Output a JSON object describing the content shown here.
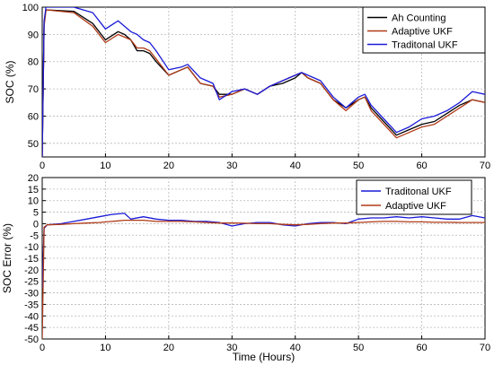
{
  "chart_data": [
    {
      "type": "line",
      "title": "",
      "xlabel": "",
      "ylabel": "SOC (%)",
      "xlim": [
        0,
        70
      ],
      "ylim": [
        45,
        100
      ],
      "xticks": [
        0,
        10,
        20,
        30,
        40,
        50,
        60,
        70
      ],
      "yticks": [
        50,
        60,
        70,
        80,
        90,
        100
      ],
      "grid": true,
      "legend": "top-right",
      "colors": [
        "#000000",
        "#b03a17",
        "#1a1ad8"
      ],
      "series": [
        {
          "name": "Ah Counting",
          "color": "#000000",
          "x": [
            0,
            0.3,
            0.6,
            5,
            8,
            10,
            12,
            13,
            14,
            15,
            16,
            17,
            18,
            20,
            22,
            23,
            25,
            27,
            28,
            30,
            32,
            34,
            36,
            38,
            40,
            41,
            42,
            44,
            46,
            48,
            50,
            51,
            52,
            54,
            56,
            58,
            60,
            62,
            64,
            66,
            68,
            70
          ],
          "y": [
            45,
            94,
            99,
            98.5,
            94,
            88,
            91,
            90,
            88,
            84,
            84,
            83,
            80,
            75,
            77,
            78,
            72,
            71,
            68,
            68,
            70,
            68,
            71,
            72,
            74,
            76,
            74,
            72,
            66,
            63,
            66,
            67,
            63,
            58,
            53,
            55,
            57,
            58,
            61,
            64,
            66,
            65
          ]
        },
        {
          "name": "Adaptive UKF",
          "color": "#b03a17",
          "x": [
            0,
            0.3,
            0.6,
            5,
            8,
            10,
            12,
            13,
            14,
            15,
            16,
            17,
            18,
            20,
            22,
            23,
            25,
            27,
            28,
            30,
            32,
            34,
            36,
            38,
            40,
            41,
            42,
            44,
            46,
            48,
            50,
            51,
            52,
            54,
            56,
            58,
            60,
            62,
            64,
            66,
            68,
            70
          ],
          "y": [
            45,
            93,
            99,
            98,
            93,
            87,
            90,
            89,
            88,
            85,
            85,
            84,
            81,
            75,
            77,
            78,
            72,
            71,
            67,
            68,
            70,
            68,
            71,
            73,
            75,
            76,
            74,
            72,
            66,
            62,
            66,
            67,
            62,
            57,
            52,
            54,
            56,
            57,
            60,
            63,
            66,
            65
          ]
        },
        {
          "name": "Traditonal UKF",
          "color": "#1a1ad8",
          "x": [
            0,
            0.3,
            0.6,
            5,
            8,
            10,
            12,
            13,
            14,
            15,
            16,
            17,
            18,
            20,
            22,
            23,
            25,
            27,
            28,
            30,
            32,
            34,
            36,
            38,
            40,
            41,
            42,
            44,
            46,
            48,
            50,
            51,
            52,
            54,
            56,
            58,
            60,
            62,
            64,
            66,
            68,
            70
          ],
          "y": [
            45,
            95,
            100,
            100,
            98,
            92,
            95,
            93,
            91,
            90,
            88,
            87,
            84,
            77,
            78,
            79,
            74,
            72,
            66,
            69,
            70,
            68,
            71,
            73,
            75,
            76,
            75,
            73,
            67,
            63,
            67,
            68,
            64,
            59,
            54,
            56,
            59,
            60,
            62,
            65,
            69,
            68
          ]
        }
      ]
    },
    {
      "type": "line",
      "title": "",
      "xlabel": "Time (Hours)",
      "ylabel": "SOC Error (%)",
      "xlim": [
        0,
        70
      ],
      "ylim": [
        -50,
        20
      ],
      "xticks": [
        0,
        10,
        20,
        30,
        40,
        50,
        60,
        70
      ],
      "yticks": [
        -50,
        -45,
        -40,
        -35,
        -30,
        -25,
        -20,
        -15,
        -10,
        -5,
        0,
        5,
        10,
        15,
        20
      ],
      "grid": true,
      "legend": "top-right",
      "colors": [
        "#1a1ad8",
        "#b03a17"
      ],
      "series": [
        {
          "name": "Traditonal UKF",
          "color": "#1a1ad8",
          "x": [
            0,
            0.3,
            0.8,
            3,
            5,
            7,
            9,
            11,
            13,
            14,
            16,
            18,
            20,
            22,
            24,
            26,
            28,
            30,
            32,
            34,
            36,
            38,
            40,
            42,
            44,
            46,
            48,
            50,
            52,
            54,
            56,
            58,
            60,
            62,
            64,
            66,
            68,
            70
          ],
          "y": [
            -28,
            -2,
            -0.5,
            0,
            1,
            2,
            3,
            4,
            4.5,
            2,
            3,
            2,
            1.5,
            1.5,
            1,
            1,
            0.5,
            -1,
            0,
            0.5,
            0.5,
            -0.5,
            -1,
            0,
            0.5,
            0.5,
            0,
            2,
            2.5,
            2.5,
            3,
            2.5,
            3,
            2.5,
            2,
            2,
            3.5,
            2.5
          ]
        },
        {
          "name": "Adaptive UKF",
          "color": "#b03a17",
          "x": [
            0,
            0.3,
            0.8,
            3,
            5,
            7,
            9,
            11,
            13,
            14,
            16,
            18,
            20,
            22,
            24,
            26,
            28,
            30,
            32,
            34,
            36,
            38,
            40,
            42,
            44,
            46,
            48,
            50,
            52,
            54,
            56,
            58,
            60,
            62,
            64,
            66,
            68,
            70
          ],
          "y": [
            -50,
            -1.5,
            -0.5,
            -0.3,
            0,
            0.3,
            0.5,
            1,
            1.5,
            1.5,
            1.5,
            1,
            1,
            1,
            0.8,
            0.5,
            0.3,
            0.3,
            0.2,
            0,
            0,
            -0.3,
            -0.5,
            -0.3,
            0,
            0.3,
            0.3,
            0.5,
            0.8,
            1,
            1,
            0.8,
            0.8,
            0.6,
            0.6,
            0.5,
            0.5,
            0.5
          ]
        }
      ]
    }
  ]
}
